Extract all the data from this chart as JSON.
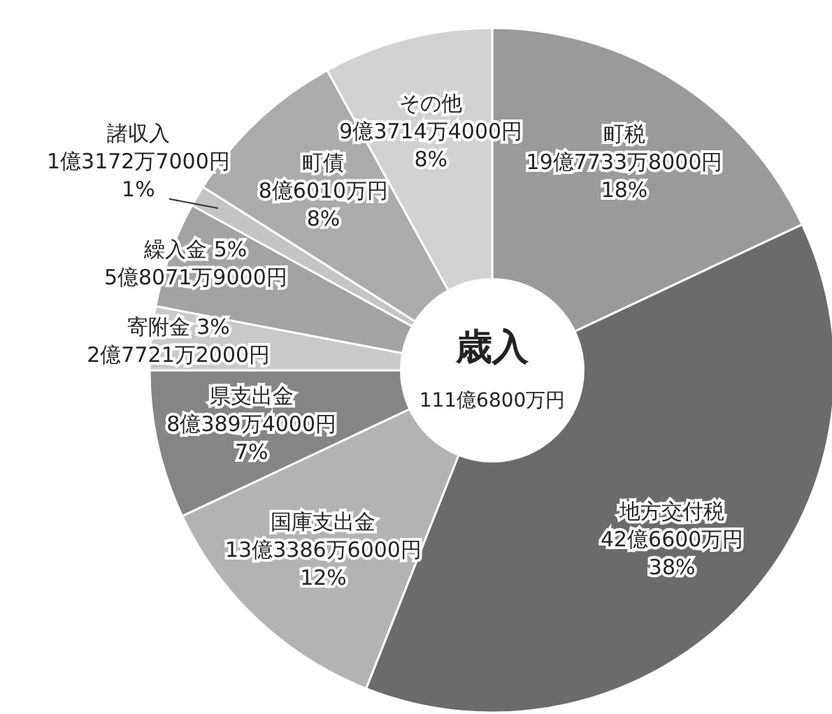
{
  "chart_data": {
    "type": "donut",
    "title": "歳入",
    "subtitle": "111億6800万円",
    "categories": [
      "町税",
      "地方交付税",
      "国庫支出金",
      "県支出金",
      "寄附金",
      "繰入金",
      "諸収入",
      "町債",
      "その他"
    ],
    "values": [
      18,
      38,
      12,
      7,
      3,
      5,
      1,
      8,
      8
    ],
    "value_labels": [
      "18%",
      "38%",
      "12%",
      "7%",
      "3%",
      "5%",
      "1%",
      "8%",
      "8%"
    ],
    "annotations": [
      "19億7733万8000円",
      "42億6600万円",
      "13億3386万6000円",
      "8億389万4000円",
      "2億7721万2000円",
      "5億8071万9000円",
      "1億3172万7000円",
      "8億6010万円",
      "9億3714万4000円"
    ],
    "colors": [
      "#9a9a9a",
      "#6b6b6b",
      "#b3b3b3",
      "#858585",
      "#c9c9c9",
      "#a3a3a3",
      "#c4c4c4",
      "#ababab",
      "#d2d2d2"
    ]
  }
}
